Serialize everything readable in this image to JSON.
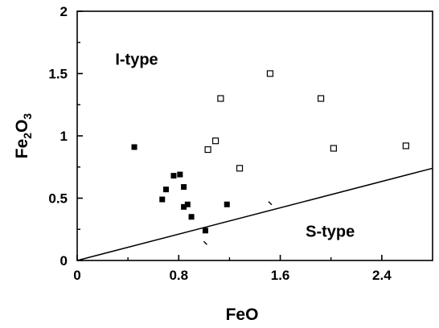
{
  "chart_data": {
    "type": "scatter",
    "xlabel": "FeO",
    "ylabel": "Fe2O3",
    "xlim": [
      0,
      2.8
    ],
    "ylim": [
      0,
      2
    ],
    "x_ticks": [
      {
        "value": 0,
        "label": "0"
      },
      {
        "value": 0.8,
        "label": "0.8"
      },
      {
        "value": 1.6,
        "label": "1.6"
      },
      {
        "value": 2.4,
        "label": "2.4"
      }
    ],
    "y_ticks": [
      {
        "value": 0,
        "label": "0"
      },
      {
        "value": 0.5,
        "label": "0.5"
      },
      {
        "value": 1,
        "label": "1"
      },
      {
        "value": 1.5,
        "label": "1.5"
      },
      {
        "value": 2,
        "label": "2"
      }
    ],
    "grid": false,
    "series": [
      {
        "marker": "filled-square",
        "points": [
          {
            "x": 0.45,
            "y": 0.91
          },
          {
            "x": 0.67,
            "y": 0.49
          },
          {
            "x": 0.7,
            "y": 0.57
          },
          {
            "x": 0.76,
            "y": 0.68
          },
          {
            "x": 0.81,
            "y": 0.69
          },
          {
            "x": 0.84,
            "y": 0.59
          },
          {
            "x": 0.84,
            "y": 0.43
          },
          {
            "x": 0.87,
            "y": 0.45
          },
          {
            "x": 0.9,
            "y": 0.35
          },
          {
            "x": 1.01,
            "y": 0.24
          },
          {
            "x": 1.18,
            "y": 0.45
          }
        ]
      },
      {
        "marker": "open-square",
        "points": [
          {
            "x": 1.03,
            "y": 0.89
          },
          {
            "x": 1.09,
            "y": 0.96
          },
          {
            "x": 1.13,
            "y": 1.3
          },
          {
            "x": 1.28,
            "y": 0.74
          },
          {
            "x": 1.52,
            "y": 1.5
          },
          {
            "x": 1.92,
            "y": 1.3
          },
          {
            "x": 2.02,
            "y": 0.9
          },
          {
            "x": 2.59,
            "y": 0.92
          }
        ]
      }
    ],
    "stray_marks": [
      {
        "x": 1.52,
        "y": 0.46
      },
      {
        "x": 1.01,
        "y": 0.14
      }
    ],
    "boundary_line": {
      "x": [
        0,
        2.8
      ],
      "y": [
        0,
        0.74
      ]
    },
    "annotations": [
      {
        "text": "I-type",
        "x": 0.3,
        "y": 1.57
      },
      {
        "text": "S-type",
        "x": 1.8,
        "y": 0.19
      }
    ]
  }
}
